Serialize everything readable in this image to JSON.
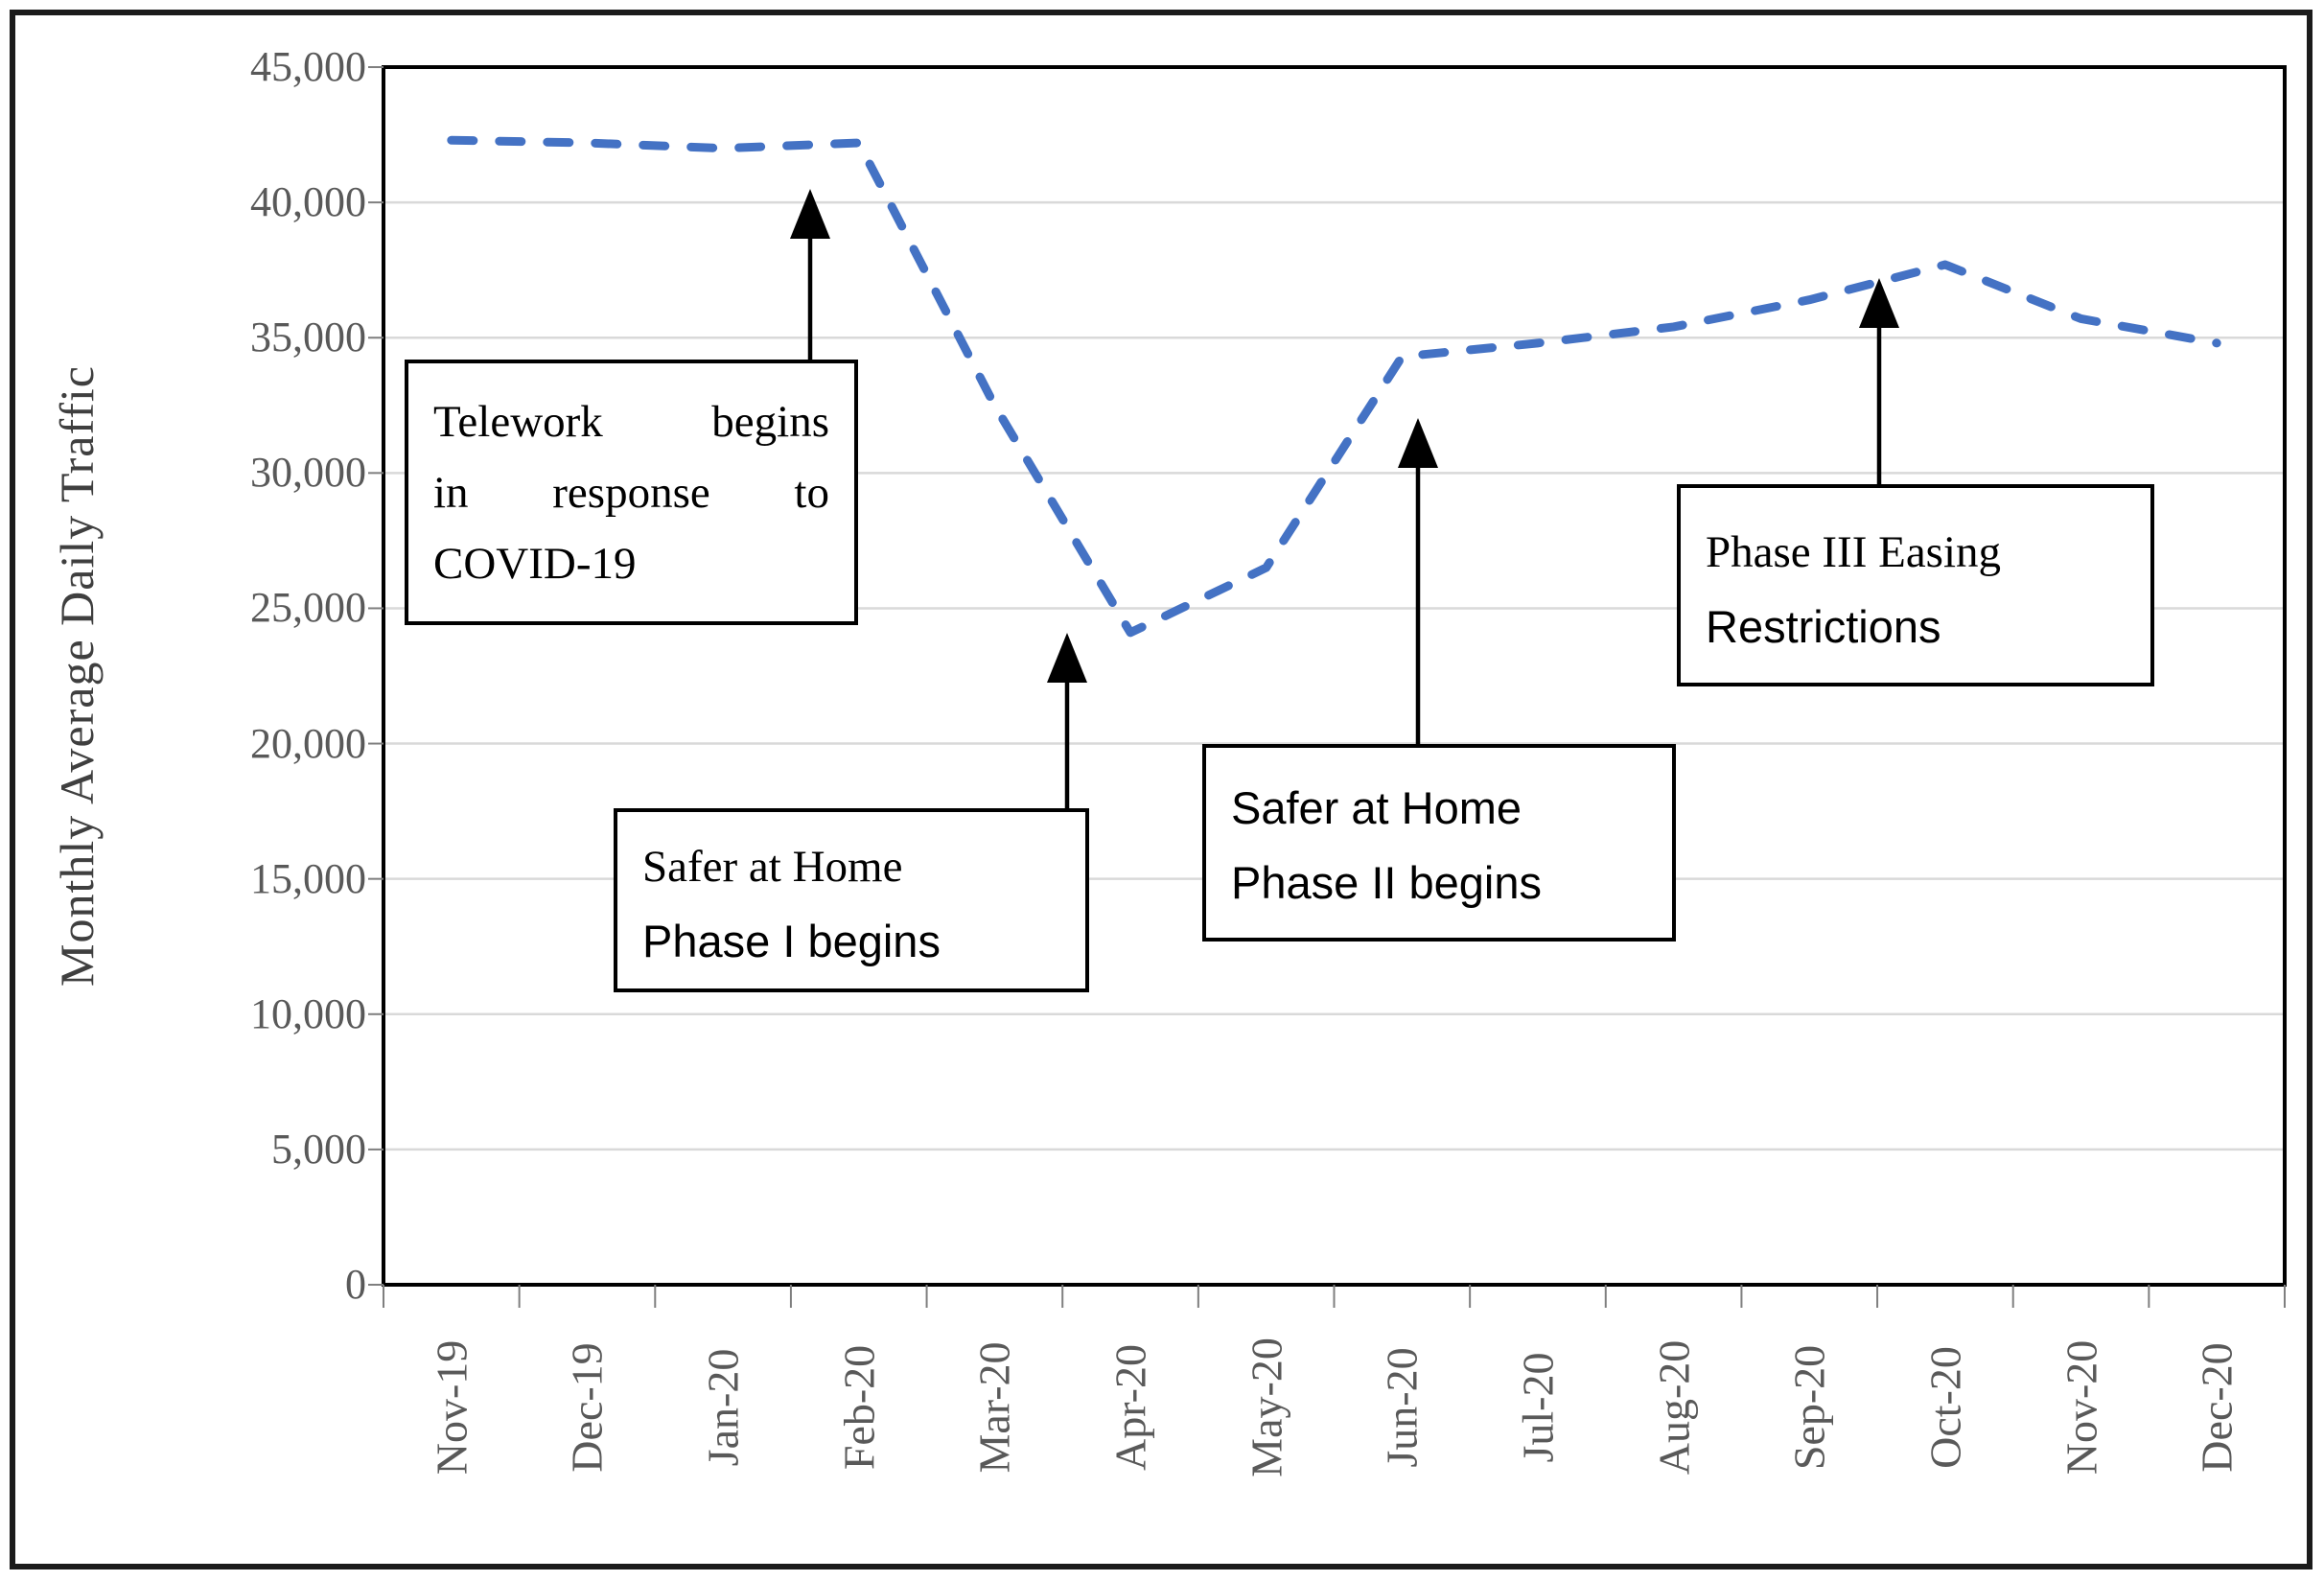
{
  "chart_data": {
    "type": "line",
    "title": "",
    "categories": [
      "Nov-19",
      "Dec-19",
      "Jan-20",
      "Feb-20",
      "Mar-20",
      "Apr-20",
      "May-20",
      "Jun-20",
      "Jul-20",
      "Aug-20",
      "Sep-20",
      "Oct-20",
      "Nov-20",
      "Dec-20"
    ],
    "series": [
      {
        "name": "Monthly Average Daily Traffic",
        "values": [
          42300,
          42200,
          42000,
          42200,
          32500,
          24100,
          26500,
          34300,
          34800,
          35400,
          36400,
          37700,
          35700,
          34800
        ]
      }
    ],
    "xlabel": "",
    "ylabel": "Monthly Average Daily Traffic",
    "ylim": [
      0,
      45000
    ],
    "ytick_interval": 5000,
    "ytick_labels": [
      "0",
      "5,000",
      "10,000",
      "15,000",
      "20,000",
      "25,000",
      "30,000",
      "35,000",
      "40,000",
      "45,000"
    ],
    "grid": true,
    "legend_position": "none",
    "line_style": "dashed",
    "line_color": "#4472C4",
    "annotations": [
      {
        "lines": [
          "Telework begins",
          "in response to",
          "COVID-19"
        ],
        "points_to": "Feb-20"
      },
      {
        "lines": [
          "Safer at Home",
          "Phase I begins"
        ],
        "points_to": "Apr-20"
      },
      {
        "lines": [
          "Safer at Home",
          "Phase II begins"
        ],
        "points_to": "Jun-20"
      },
      {
        "lines": [
          "Phase III Easing",
          "Restrictions"
        ],
        "points_to": "Oct-20"
      }
    ]
  },
  "colors": {
    "line": "#4472C4",
    "gridline": "#D9D9D9",
    "axis_text": "#595959",
    "annotation_border": "#000000",
    "arrow": "#000000"
  }
}
